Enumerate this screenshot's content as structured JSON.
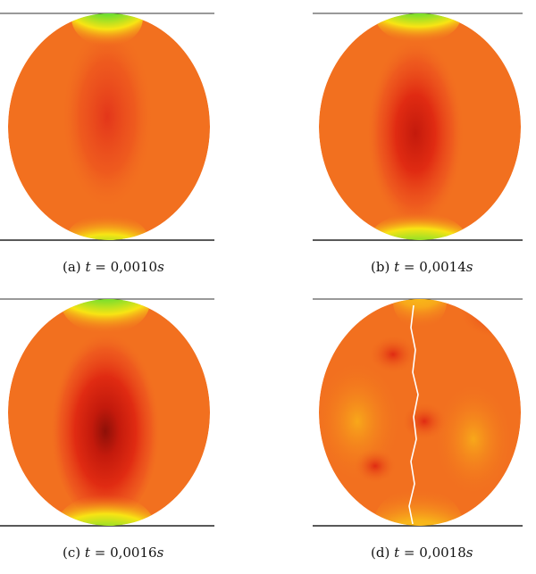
{
  "figure": {
    "panels": [
      {
        "label": "(a)",
        "var": "t",
        "eq": "=",
        "value": "0,0010",
        "unit": "s",
        "crack_visible": false,
        "damage_level": 0.55
      },
      {
        "label": "(b)",
        "var": "t",
        "eq": "=",
        "value": "0,0014",
        "unit": "s",
        "crack_visible": false,
        "damage_level": 0.72
      },
      {
        "label": "(c)",
        "var": "t",
        "eq": "=",
        "value": "0,0016",
        "unit": "s",
        "crack_visible": false,
        "damage_level": 0.9
      },
      {
        "label": "(d)",
        "var": "t",
        "eq": "=",
        "value": "0,0018",
        "unit": "s",
        "crack_visible": true,
        "damage_level": 0.5
      }
    ],
    "colors": {
      "base": "#f2701f",
      "core": "#e02b12",
      "deep": "#9a1208",
      "yellow": "#f8e414",
      "green": "#72df2e",
      "cyan": "#1ec6d8",
      "blue": "#1530d6",
      "plate": "#333333"
    }
  }
}
